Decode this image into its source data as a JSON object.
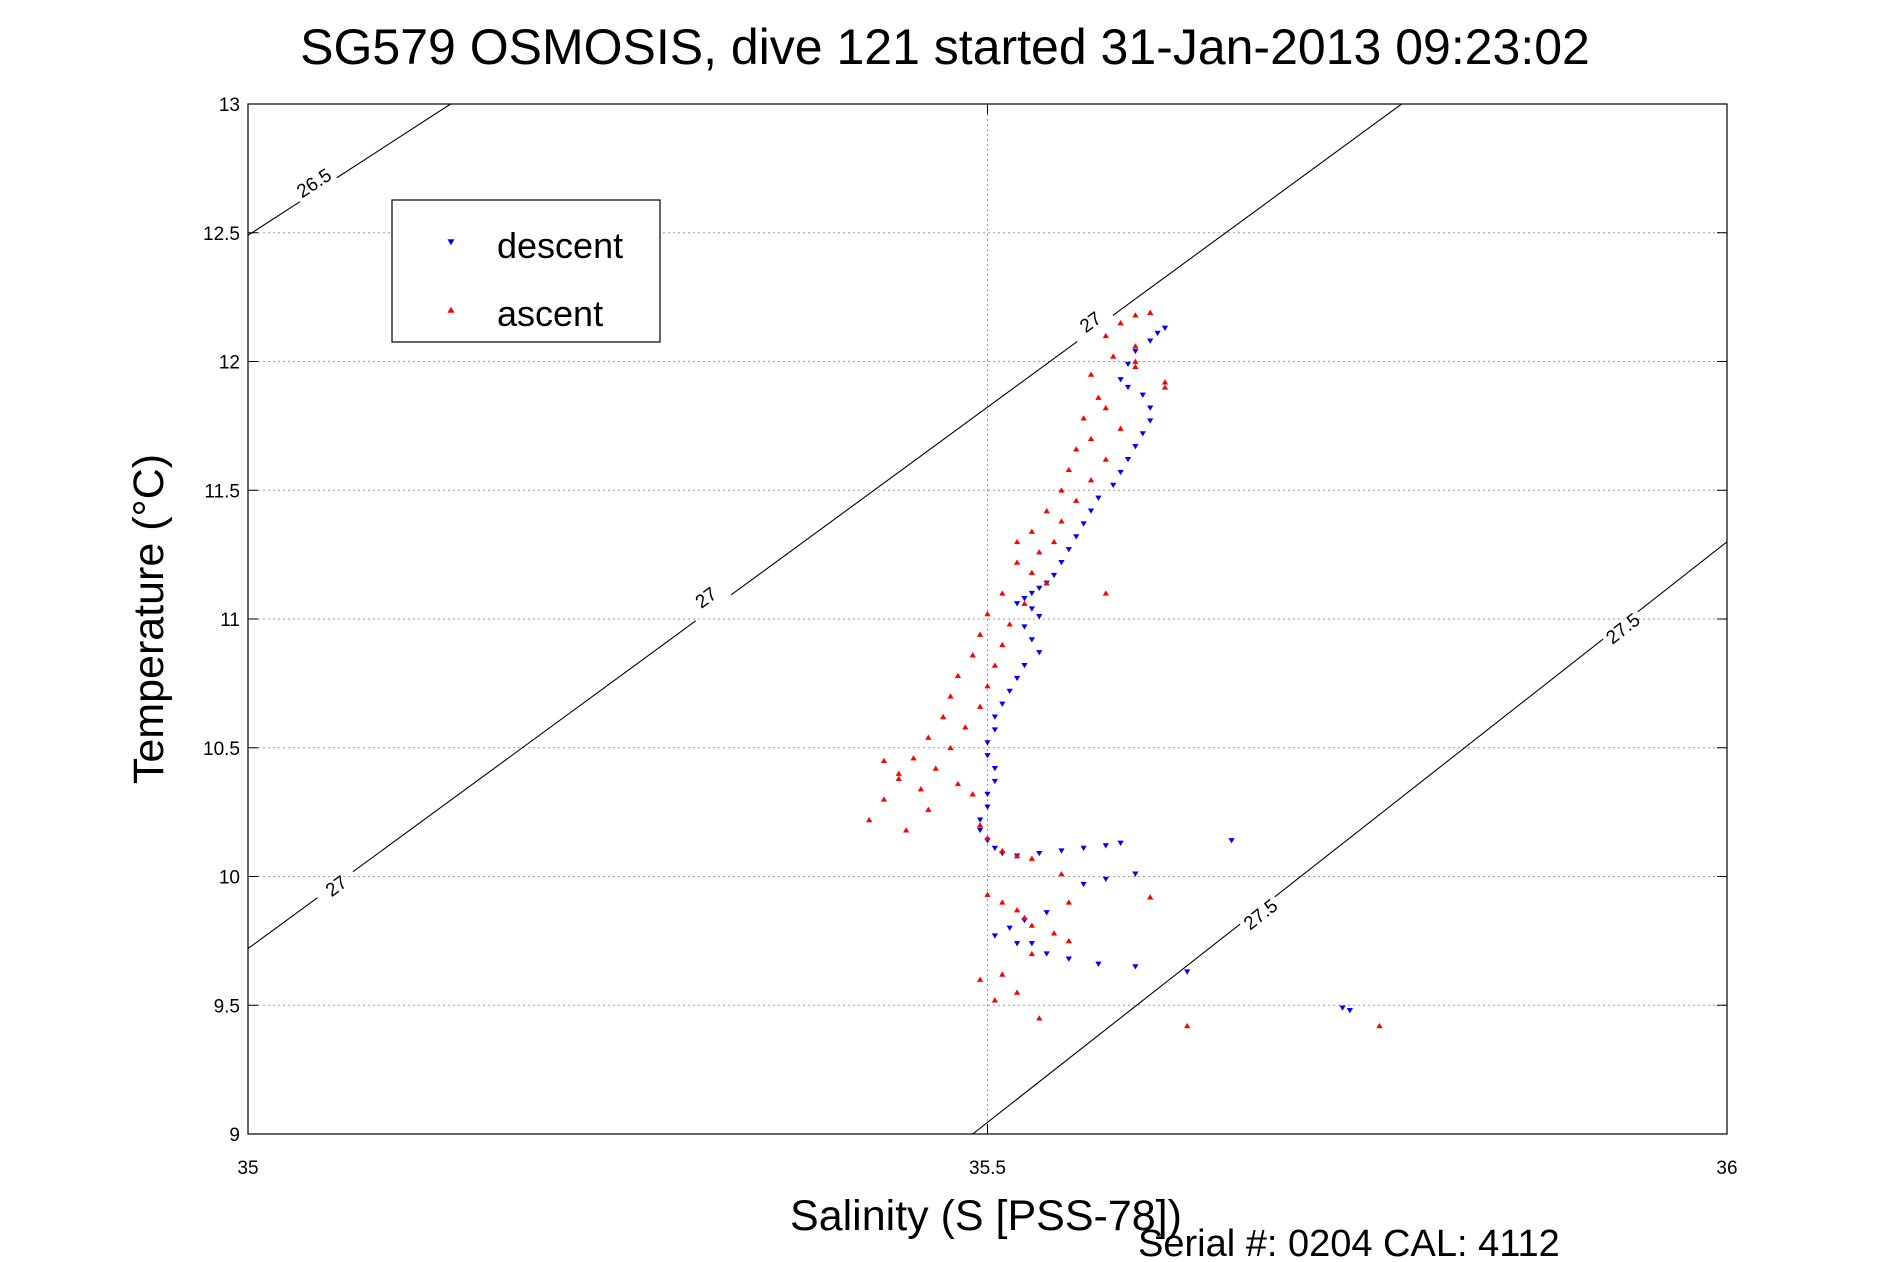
{
  "chart_data": {
    "type": "scatter",
    "title": "SG579 OSMOSIS, dive 121 started 31-Jan-2013 09:23:02",
    "xlabel": "Salinity (S [PSS-78])",
    "ylabel": "Temperature (°C)",
    "xlim": [
      35,
      36
    ],
    "ylim": [
      9,
      13
    ],
    "x_ticks": [
      35,
      35.5,
      36
    ],
    "x_tick_labels": [
      "35",
      "35.5",
      "36"
    ],
    "y_ticks": [
      9,
      9.5,
      10,
      10.5,
      11,
      11.5,
      12,
      12.5,
      13
    ],
    "y_tick_labels": [
      "9",
      "9.5",
      "10",
      "10.5",
      "11",
      "11.5",
      "12",
      "12.5",
      "13"
    ],
    "grid": true,
    "legend_position": "top-left",
    "footer": "Serial #: 0204  CAL: 4112",
    "colors": {
      "descent": "#0000ff",
      "ascent": "#ff0000",
      "contour": "#000000",
      "grid": "#9a9a9a"
    },
    "density_contours": [
      {
        "label": "26.5",
        "points": [
          [
            35,
            12.49
          ],
          [
            35.137,
            13.0
          ]
        ],
        "label_points": [
          [
            35.045,
            12.69
          ]
        ]
      },
      {
        "label": "27",
        "points": [
          [
            35,
            9.72
          ],
          [
            35.78,
            13.0
          ]
        ],
        "label_points": [
          [
            35.06,
            9.96
          ],
          [
            35.31,
            11.08
          ],
          [
            35.57,
            12.15
          ]
        ]
      },
      {
        "label": "27.5",
        "points": [
          [
            35.49,
            9.0
          ],
          [
            36,
            11.3
          ]
        ],
        "label_points": [
          [
            35.685,
            9.85
          ],
          [
            35.93,
            10.96
          ]
        ]
      }
    ],
    "series": [
      {
        "name": "descent",
        "marker": "triangle-down",
        "x": [
          35.62,
          35.615,
          35.61,
          35.6,
          35.595,
          35.59,
          35.595,
          35.605,
          35.61,
          35.61,
          35.605,
          35.6,
          35.595,
          35.59,
          35.585,
          35.575,
          35.57,
          35.565,
          35.56,
          35.555,
          35.55,
          35.545,
          35.54,
          35.535,
          35.53,
          35.525,
          35.52,
          35.53,
          35.535,
          35.525,
          35.53,
          35.535,
          35.525,
          35.52,
          35.515,
          35.51,
          35.505,
          35.505,
          35.5,
          35.5,
          35.505,
          35.505,
          35.5,
          35.5,
          35.495,
          35.495,
          35.5,
          35.505,
          35.51,
          35.52,
          35.535,
          35.55,
          35.565,
          35.58,
          35.59,
          35.54,
          35.525,
          35.515,
          35.505,
          35.52,
          35.53,
          35.54,
          35.555,
          35.575,
          35.6,
          35.635,
          35.665,
          35.6,
          35.58,
          35.565,
          35.74,
          35.745
        ],
        "y": [
          12.13,
          12.11,
          12.08,
          12.04,
          11.99,
          11.93,
          11.9,
          11.87,
          11.82,
          11.77,
          11.72,
          11.67,
          11.62,
          11.57,
          11.52,
          11.47,
          11.42,
          11.37,
          11.32,
          11.27,
          11.22,
          11.17,
          11.14,
          11.12,
          11.1,
          11.08,
          11.06,
          11.04,
          11.01,
          10.97,
          10.92,
          10.87,
          10.82,
          10.77,
          10.72,
          10.67,
          10.62,
          10.57,
          10.52,
          10.47,
          10.42,
          10.37,
          10.32,
          10.27,
          10.22,
          10.18,
          10.14,
          10.11,
          10.09,
          10.08,
          10.09,
          10.1,
          10.11,
          10.12,
          10.13,
          9.86,
          9.83,
          9.8,
          9.77,
          9.74,
          9.74,
          9.7,
          9.68,
          9.66,
          9.65,
          9.63,
          10.14,
          10.01,
          9.99,
          9.97,
          9.49,
          9.48
        ]
      },
      {
        "name": "ascent",
        "marker": "triangle-up",
        "x": [
          35.61,
          35.6,
          35.59,
          35.58,
          35.6,
          35.585,
          35.6,
          35.57,
          35.62,
          35.575,
          35.58,
          35.565,
          35.59,
          35.57,
          35.56,
          35.58,
          35.555,
          35.57,
          35.55,
          35.56,
          35.54,
          35.55,
          35.53,
          35.545,
          35.535,
          35.52,
          35.53,
          35.54,
          35.51,
          35.525,
          35.5,
          35.515,
          35.495,
          35.51,
          35.49,
          35.505,
          35.48,
          35.5,
          35.475,
          35.495,
          35.47,
          35.485,
          35.46,
          35.475,
          35.45,
          35.465,
          35.44,
          35.455,
          35.43,
          35.46,
          35.42,
          35.445,
          35.43,
          35.44,
          35.48,
          35.49,
          35.495,
          35.5,
          35.51,
          35.52,
          35.53,
          35.5,
          35.51,
          35.52,
          35.525,
          35.53,
          35.545,
          35.555,
          35.53,
          35.51,
          35.52,
          35.495,
          35.505,
          35.535,
          35.555,
          35.61,
          35.635,
          35.765,
          35.55,
          35.52,
          35.58,
          35.6,
          35.62
        ],
        "y": [
          12.19,
          12.18,
          12.15,
          12.1,
          12.06,
          12.02,
          11.98,
          11.95,
          11.9,
          11.86,
          11.82,
          11.78,
          11.74,
          11.7,
          11.66,
          11.62,
          11.58,
          11.54,
          11.5,
          11.46,
          11.42,
          11.38,
          11.34,
          11.3,
          11.26,
          11.22,
          11.18,
          11.14,
          11.1,
          11.06,
          11.02,
          10.98,
          10.94,
          10.9,
          10.86,
          10.82,
          10.78,
          10.74,
          10.7,
          10.66,
          10.62,
          10.58,
          10.54,
          10.5,
          10.46,
          10.42,
          10.38,
          10.34,
          10.3,
          10.26,
          10.22,
          10.18,
          10.45,
          10.4,
          10.36,
          10.32,
          10.2,
          10.15,
          10.1,
          10.08,
          10.07,
          9.93,
          9.9,
          9.87,
          9.84,
          9.81,
          9.78,
          9.75,
          9.7,
          9.62,
          9.55,
          9.6,
          9.52,
          9.45,
          9.9,
          9.92,
          9.42,
          9.42,
          10.01,
          11.3,
          11.1,
          12.0,
          11.92
        ]
      }
    ]
  }
}
